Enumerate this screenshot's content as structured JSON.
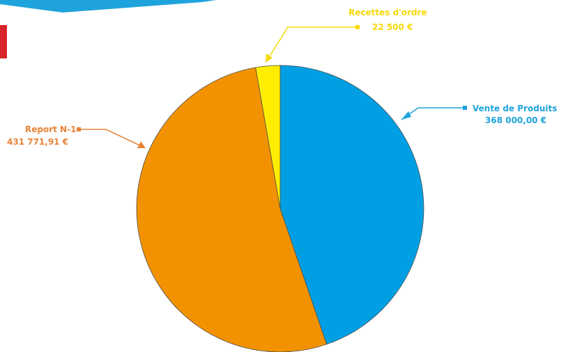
{
  "colors": {
    "banner": "#1fa3dc",
    "accent_red": "#d9252a"
  },
  "chart_data": {
    "type": "pie",
    "slices": [
      {
        "name": "Vente de Produits",
        "value": 368000.0,
        "value_label": "368 000,00 €",
        "color": "#009fe3"
      },
      {
        "name": "Report N-1",
        "value": 431771.91,
        "value_label": "431 771,91 €",
        "color": "#f39200"
      },
      {
        "name": "Recettes d'ordre",
        "value": 22500,
        "value_label": "22 500 €",
        "color": "#ffed00"
      }
    ],
    "label_colors": {
      "Vente de Produits": "#1fa3dc",
      "Report N-1": "#e8833a",
      "Recettes d'ordre": "#f5d90a"
    },
    "start_angle_deg": 0,
    "direction": "clockwise"
  }
}
